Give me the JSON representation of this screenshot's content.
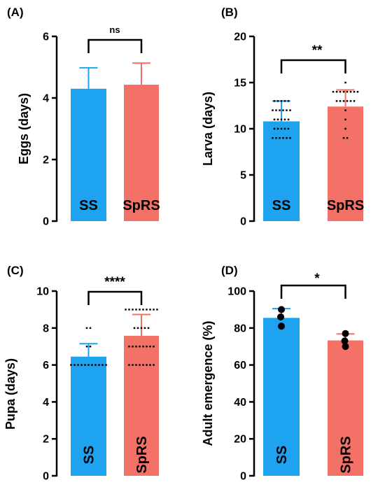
{
  "colors": {
    "SS": "#1ea3f0",
    "SpRS": "#f47168"
  },
  "chart_data": [
    {
      "type": "bar",
      "panel": "(A)",
      "ylabel": "Eggs (days)",
      "ylim": [
        0,
        6
      ],
      "yticks": [
        "0",
        "2",
        "4",
        "6"
      ],
      "categories": [
        "SS",
        "SpRS"
      ],
      "values": [
        4.3,
        4.43
      ],
      "errors": [
        0.68,
        0.7
      ],
      "points": [
        [],
        []
      ],
      "significance": "ns"
    },
    {
      "type": "bar",
      "panel": "(B)",
      "ylabel": "Larva (days)",
      "ylim": [
        0,
        20
      ],
      "yticks": [
        "0",
        "5",
        "10",
        "15",
        "20"
      ],
      "categories": [
        "SS",
        "SpRS"
      ],
      "values": [
        10.8,
        12.4
      ],
      "errors": [
        2.2,
        1.8
      ],
      "points": [
        [
          9,
          9,
          9,
          9,
          9,
          9,
          10,
          10,
          10,
          10,
          10,
          11,
          11,
          11,
          11,
          11,
          12,
          12,
          12,
          12,
          12,
          12,
          13,
          13,
          13,
          13,
          13
        ],
        [
          9,
          9,
          10,
          11,
          12,
          13,
          13,
          13,
          13,
          13,
          13,
          14,
          14,
          14,
          14,
          14,
          14,
          14,
          14,
          15
        ]
      ],
      "significance": "**"
    },
    {
      "type": "bar",
      "panel": "(C)",
      "ylabel": "Pupa (days)",
      "ylim": [
        0,
        10
      ],
      "yticks": [
        "0",
        "2",
        "4",
        "6",
        "8",
        "10"
      ],
      "categories": [
        "SS",
        "SpRS"
      ],
      "values": [
        6.45,
        7.58
      ],
      "errors": [
        0.7,
        1.15
      ],
      "points": [
        [
          6,
          6,
          6,
          6,
          6,
          6,
          6,
          6,
          6,
          6,
          6,
          7,
          7,
          8,
          8
        ],
        [
          6,
          6,
          6,
          6,
          6,
          6,
          6,
          6,
          7,
          7,
          7,
          7,
          7,
          7,
          7,
          7,
          8,
          8,
          8,
          8,
          8,
          9,
          9,
          9,
          9,
          9,
          9,
          9,
          9,
          9,
          9
        ]
      ],
      "significance": "****"
    },
    {
      "type": "bar",
      "panel": "(D)",
      "ylabel": "Adult emergence (%)",
      "ylim": [
        0,
        100
      ],
      "yticks": [
        "0",
        "20",
        "40",
        "60",
        "80",
        "100"
      ],
      "categories": [
        "SS",
        "SpRS"
      ],
      "values": [
        85.5,
        73.3
      ],
      "errors": [
        5.0,
        3.5
      ],
      "points": [
        [
          90,
          86,
          81
        ],
        [
          77,
          73,
          70
        ]
      ],
      "significance": "*"
    }
  ]
}
